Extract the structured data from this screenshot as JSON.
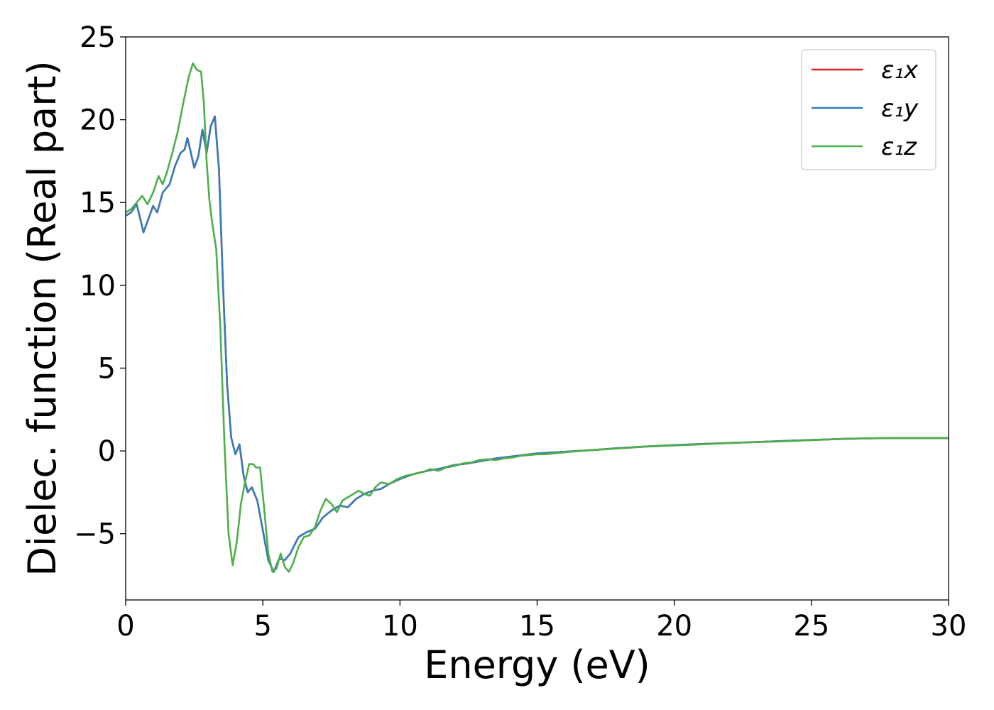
{
  "chart_data": {
    "type": "line",
    "title": "",
    "xlabel": "Energy (eV)",
    "ylabel": "Dielec. function (Real part)",
    "xlim": [
      0,
      30
    ],
    "ylim": [
      -9,
      25
    ],
    "xticks": [
      0,
      5,
      10,
      15,
      20,
      25,
      30
    ],
    "yticks": [
      -5,
      0,
      5,
      10,
      15,
      20,
      25
    ],
    "xtick_labels": [
      "0",
      "5",
      "10",
      "15",
      "20",
      "25",
      "30"
    ],
    "ytick_labels": [
      "−5",
      "0",
      "5",
      "10",
      "15",
      "20",
      "25"
    ],
    "grid": false,
    "legend_position": "top-right",
    "series": [
      {
        "name": "ε₁x",
        "color": "#e41a1c",
        "points": [
          [
            0,
            14.2
          ],
          [
            0.2,
            14.4
          ],
          [
            0.4,
            14.9
          ],
          [
            0.65,
            13.2
          ],
          [
            0.85,
            14.1
          ],
          [
            1.0,
            14.8
          ],
          [
            1.15,
            14.4
          ],
          [
            1.35,
            15.6
          ],
          [
            1.6,
            16.1
          ],
          [
            1.8,
            17.2
          ],
          [
            2.0,
            18.0
          ],
          [
            2.15,
            18.2
          ],
          [
            2.25,
            18.9
          ],
          [
            2.35,
            18.2
          ],
          [
            2.5,
            17.1
          ],
          [
            2.65,
            17.8
          ],
          [
            2.8,
            19.4
          ],
          [
            2.95,
            18.0
          ],
          [
            3.1,
            19.6
          ],
          [
            3.25,
            20.2
          ],
          [
            3.4,
            17.0
          ],
          [
            3.55,
            10.0
          ],
          [
            3.7,
            4.0
          ],
          [
            3.85,
            0.8
          ],
          [
            4.0,
            -0.2
          ],
          [
            4.15,
            0.4
          ],
          [
            4.3,
            -1.5
          ],
          [
            4.45,
            -2.5
          ],
          [
            4.6,
            -2.2
          ],
          [
            4.8,
            -3.0
          ],
          [
            5.0,
            -4.8
          ],
          [
            5.2,
            -6.6
          ],
          [
            5.4,
            -7.3
          ],
          [
            5.6,
            -6.5
          ],
          [
            5.8,
            -6.6
          ],
          [
            6.0,
            -6.2
          ],
          [
            6.3,
            -5.2
          ],
          [
            6.6,
            -4.9
          ],
          [
            6.9,
            -4.7
          ],
          [
            7.2,
            -4.0
          ],
          [
            7.5,
            -3.6
          ],
          [
            7.8,
            -3.3
          ],
          [
            8.1,
            -3.4
          ],
          [
            8.4,
            -2.9
          ],
          [
            8.7,
            -2.6
          ],
          [
            9.0,
            -2.4
          ],
          [
            9.3,
            -2.3
          ],
          [
            9.6,
            -2.0
          ],
          [
            10.0,
            -1.7
          ],
          [
            10.5,
            -1.4
          ],
          [
            11.0,
            -1.2
          ],
          [
            11.5,
            -1.05
          ],
          [
            12.0,
            -0.85
          ],
          [
            12.5,
            -0.75
          ],
          [
            13.0,
            -0.6
          ],
          [
            13.5,
            -0.45
          ],
          [
            14.0,
            -0.35
          ],
          [
            14.5,
            -0.25
          ],
          [
            15.0,
            -0.15
          ],
          [
            15.5,
            -0.1
          ],
          [
            16.0,
            -0.05
          ],
          [
            17.0,
            0.05
          ],
          [
            18.0,
            0.17
          ],
          [
            19.0,
            0.27
          ],
          [
            20.0,
            0.35
          ],
          [
            21.0,
            0.42
          ],
          [
            22.0,
            0.48
          ],
          [
            23.0,
            0.54
          ],
          [
            24.0,
            0.6
          ],
          [
            25.0,
            0.66
          ],
          [
            26.0,
            0.72
          ],
          [
            27.0,
            0.76
          ],
          [
            28.0,
            0.78
          ],
          [
            29.0,
            0.78
          ],
          [
            30.0,
            0.78
          ]
        ]
      },
      {
        "name": "ε₁y",
        "color": "#377eb8",
        "points": [
          [
            0,
            14.2
          ],
          [
            0.2,
            14.4
          ],
          [
            0.4,
            14.9
          ],
          [
            0.65,
            13.2
          ],
          [
            0.85,
            14.1
          ],
          [
            1.0,
            14.8
          ],
          [
            1.15,
            14.4
          ],
          [
            1.35,
            15.6
          ],
          [
            1.6,
            16.1
          ],
          [
            1.8,
            17.2
          ],
          [
            2.0,
            18.0
          ],
          [
            2.15,
            18.2
          ],
          [
            2.25,
            18.9
          ],
          [
            2.35,
            18.2
          ],
          [
            2.5,
            17.1
          ],
          [
            2.65,
            17.8
          ],
          [
            2.8,
            19.4
          ],
          [
            2.95,
            18.0
          ],
          [
            3.1,
            19.6
          ],
          [
            3.25,
            20.2
          ],
          [
            3.4,
            17.0
          ],
          [
            3.55,
            10.0
          ],
          [
            3.7,
            4.0
          ],
          [
            3.85,
            0.8
          ],
          [
            4.0,
            -0.2
          ],
          [
            4.15,
            0.4
          ],
          [
            4.3,
            -1.5
          ],
          [
            4.45,
            -2.5
          ],
          [
            4.6,
            -2.2
          ],
          [
            4.8,
            -3.0
          ],
          [
            5.0,
            -4.8
          ],
          [
            5.2,
            -6.6
          ],
          [
            5.4,
            -7.3
          ],
          [
            5.6,
            -6.5
          ],
          [
            5.8,
            -6.6
          ],
          [
            6.0,
            -6.2
          ],
          [
            6.3,
            -5.2
          ],
          [
            6.6,
            -4.9
          ],
          [
            6.9,
            -4.7
          ],
          [
            7.2,
            -4.0
          ],
          [
            7.5,
            -3.6
          ],
          [
            7.8,
            -3.3
          ],
          [
            8.1,
            -3.4
          ],
          [
            8.4,
            -2.9
          ],
          [
            8.7,
            -2.6
          ],
          [
            9.0,
            -2.4
          ],
          [
            9.3,
            -2.3
          ],
          [
            9.6,
            -2.0
          ],
          [
            10.0,
            -1.7
          ],
          [
            10.5,
            -1.4
          ],
          [
            11.0,
            -1.2
          ],
          [
            11.5,
            -1.05
          ],
          [
            12.0,
            -0.85
          ],
          [
            12.5,
            -0.75
          ],
          [
            13.0,
            -0.6
          ],
          [
            13.5,
            -0.45
          ],
          [
            14.0,
            -0.35
          ],
          [
            14.5,
            -0.25
          ],
          [
            15.0,
            -0.15
          ],
          [
            15.5,
            -0.1
          ],
          [
            16.0,
            -0.05
          ],
          [
            17.0,
            0.05
          ],
          [
            18.0,
            0.17
          ],
          [
            19.0,
            0.27
          ],
          [
            20.0,
            0.35
          ],
          [
            21.0,
            0.42
          ],
          [
            22.0,
            0.48
          ],
          [
            23.0,
            0.54
          ],
          [
            24.0,
            0.6
          ],
          [
            25.0,
            0.66
          ],
          [
            26.0,
            0.72
          ],
          [
            27.0,
            0.76
          ],
          [
            28.0,
            0.78
          ],
          [
            29.0,
            0.78
          ],
          [
            30.0,
            0.78
          ]
        ]
      },
      {
        "name": "ε₁z",
        "color": "#4daf4a",
        "points": [
          [
            0,
            14.4
          ],
          [
            0.2,
            14.6
          ],
          [
            0.4,
            15.0
          ],
          [
            0.6,
            15.4
          ],
          [
            0.8,
            14.9
          ],
          [
            1.0,
            15.6
          ],
          [
            1.2,
            16.6
          ],
          [
            1.35,
            16.1
          ],
          [
            1.5,
            16.8
          ],
          [
            1.7,
            18.0
          ],
          [
            1.9,
            19.3
          ],
          [
            2.1,
            21.0
          ],
          [
            2.3,
            22.6
          ],
          [
            2.45,
            23.4
          ],
          [
            2.6,
            23.0
          ],
          [
            2.75,
            22.9
          ],
          [
            2.85,
            21.0
          ],
          [
            2.95,
            17.5
          ],
          [
            3.05,
            15.2
          ],
          [
            3.15,
            13.8
          ],
          [
            3.3,
            12.2
          ],
          [
            3.45,
            7.5
          ],
          [
            3.6,
            0.5
          ],
          [
            3.75,
            -5.0
          ],
          [
            3.9,
            -6.9
          ],
          [
            4.05,
            -5.5
          ],
          [
            4.2,
            -3.2
          ],
          [
            4.35,
            -1.9
          ],
          [
            4.5,
            -0.8
          ],
          [
            4.65,
            -0.8
          ],
          [
            4.75,
            -1.0
          ],
          [
            4.9,
            -1.0
          ],
          [
            5.05,
            -3.5
          ],
          [
            5.2,
            -6.2
          ],
          [
            5.35,
            -7.3
          ],
          [
            5.5,
            -7.1
          ],
          [
            5.65,
            -6.2
          ],
          [
            5.8,
            -7.0
          ],
          [
            5.95,
            -7.3
          ],
          [
            6.1,
            -6.8
          ],
          [
            6.3,
            -5.8
          ],
          [
            6.5,
            -5.2
          ],
          [
            6.7,
            -5.1
          ],
          [
            6.9,
            -4.6
          ],
          [
            7.1,
            -3.6
          ],
          [
            7.3,
            -2.9
          ],
          [
            7.5,
            -3.2
          ],
          [
            7.7,
            -3.7
          ],
          [
            7.9,
            -3.0
          ],
          [
            8.1,
            -2.8
          ],
          [
            8.3,
            -2.6
          ],
          [
            8.5,
            -2.4
          ],
          [
            8.7,
            -2.6
          ],
          [
            8.9,
            -2.7
          ],
          [
            9.1,
            -2.2
          ],
          [
            9.3,
            -1.9
          ],
          [
            9.6,
            -2.0
          ],
          [
            9.9,
            -1.7
          ],
          [
            10.2,
            -1.5
          ],
          [
            10.5,
            -1.4
          ],
          [
            10.8,
            -1.3
          ],
          [
            11.1,
            -1.1
          ],
          [
            11.4,
            -1.2
          ],
          [
            11.7,
            -1.0
          ],
          [
            12.0,
            -0.9
          ],
          [
            12.3,
            -0.75
          ],
          [
            12.6,
            -0.7
          ],
          [
            12.9,
            -0.55
          ],
          [
            13.2,
            -0.5
          ],
          [
            13.5,
            -0.55
          ],
          [
            13.8,
            -0.45
          ],
          [
            14.1,
            -0.4
          ],
          [
            14.4,
            -0.3
          ],
          [
            14.7,
            -0.25
          ],
          [
            15.0,
            -0.2
          ],
          [
            15.3,
            -0.2
          ],
          [
            15.6,
            -0.15
          ],
          [
            15.9,
            -0.1
          ],
          [
            16.2,
            -0.05
          ],
          [
            17.0,
            0.05
          ],
          [
            18.0,
            0.15
          ],
          [
            19.0,
            0.26
          ],
          [
            20.0,
            0.33
          ],
          [
            21.0,
            0.4
          ],
          [
            22.0,
            0.47
          ],
          [
            23.0,
            0.53
          ],
          [
            24.0,
            0.58
          ],
          [
            25.0,
            0.65
          ],
          [
            26.0,
            0.72
          ],
          [
            27.0,
            0.76
          ],
          [
            28.0,
            0.78
          ],
          [
            29.0,
            0.78
          ],
          [
            30.0,
            0.78
          ]
        ]
      }
    ]
  }
}
